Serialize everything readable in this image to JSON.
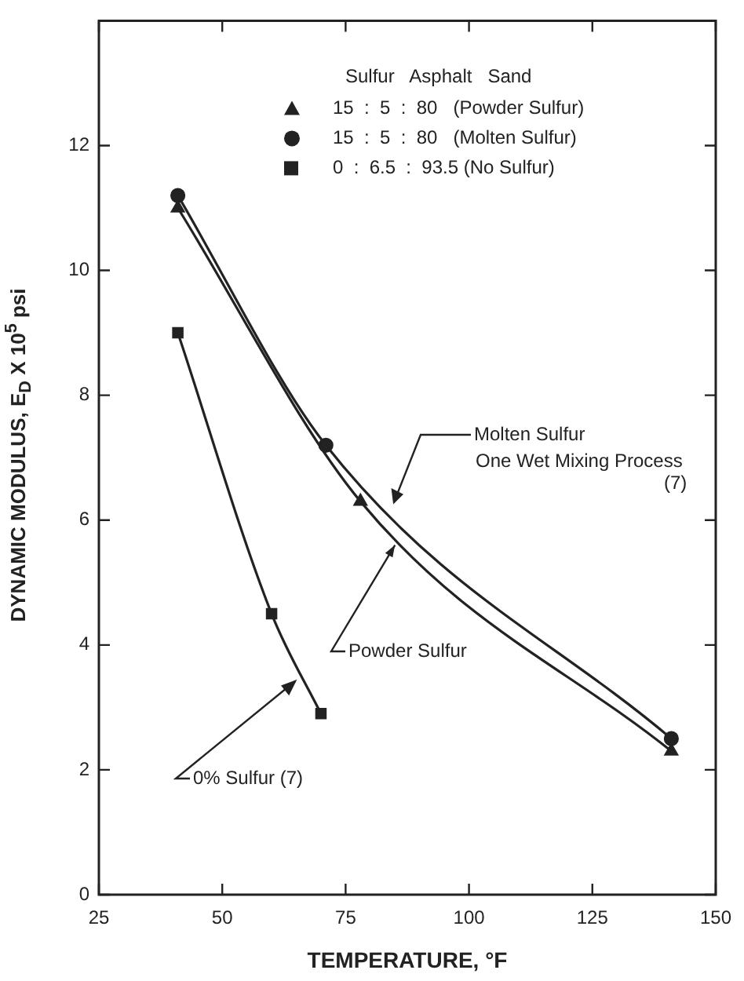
{
  "chart_data": {
    "type": "scatter",
    "xlabel": "TEMPERATURE, °F",
    "ylabel": "DYNAMIC MODULUS, E$_{D}$ X 10$^{5}$ psi",
    "legend_title": "Sulfur   Asphalt   Sand",
    "xlim": [
      25,
      150
    ],
    "ylim": [
      0,
      14
    ],
    "xticks": [
      25,
      50,
      75,
      100,
      125,
      150
    ],
    "yticks": [
      0,
      2,
      4,
      6,
      8,
      10,
      12
    ],
    "grid": false,
    "legend": "top right",
    "series": [
      {
        "type": "line",
        "name": "15  :  5  :  80   (Powder Sulfur)",
        "color": "#222222",
        "marker": "triangle",
        "x": [
          41,
          78,
          141
        ],
        "values": [
          11.0,
          6.3,
          2.3
        ]
      },
      {
        "type": "line",
        "name": "15  :  5  :  80   (Molten Sulfur)",
        "color": "#222222",
        "marker": "circle",
        "x": [
          41,
          71,
          141
        ],
        "values": [
          11.2,
          7.2,
          2.5
        ]
      },
      {
        "type": "line",
        "name": "0  :  6.5  :  93.5 (No Sulfur)",
        "color": "#222222",
        "marker": "square",
        "x": [
          41,
          60,
          70
        ],
        "values": [
          9.0,
          4.5,
          2.9
        ]
      }
    ],
    "annotations": [
      "Molten Sulfur",
      "One Wet Mixing Process",
      "(7)",
      {
        "text": "Powder Sulfur",
        "x": 85,
        "y": 5.6
      },
      "0% Sulfur (7)"
    ]
  }
}
